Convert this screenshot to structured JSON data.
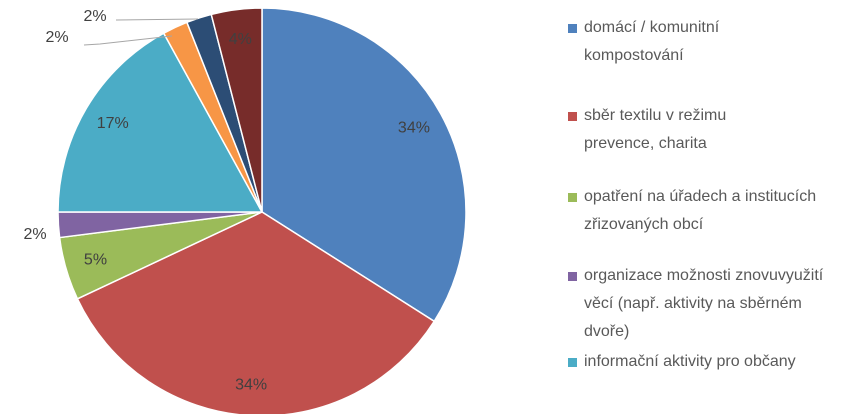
{
  "chart_data": {
    "type": "pie",
    "categories": [
      "domácí / komunitní kompostování",
      "sběr textilu v režimu prevence, charita",
      "opatření na úřadech a institucích zřizovaných obcí",
      "organizace možnosti znovuvyužití věcí (např. aktivity na sběrném dvoře)",
      "informační aktivity pro občany",
      null,
      null,
      null
    ],
    "values": [
      34,
      34,
      5,
      2,
      17,
      2,
      2,
      4
    ],
    "value_labels": [
      "34%",
      "34%",
      "5%",
      "2%",
      "17%",
      "2%",
      "2%",
      "4%"
    ],
    "colors": [
      "#4f81bd",
      "#c0504d",
      "#9bbb59",
      "#8064a2",
      "#4bacc6",
      "#f79646",
      "#2c4d75",
      "#772c2a"
    ],
    "legend": "right"
  }
}
